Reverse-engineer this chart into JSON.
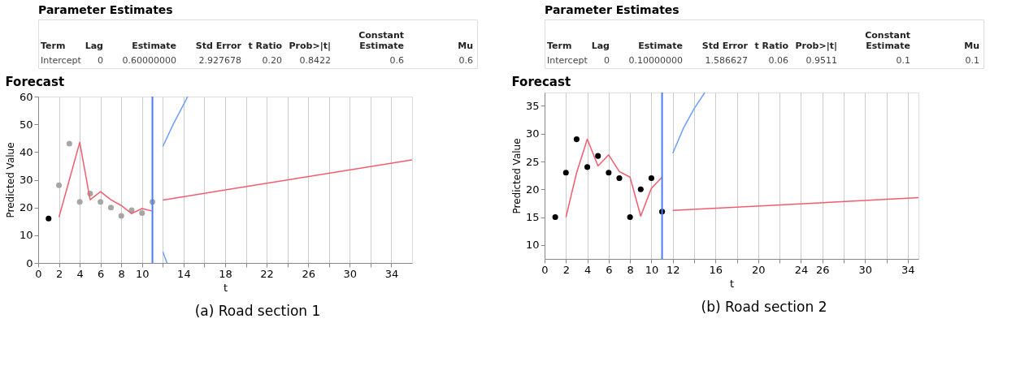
{
  "chart_data": [
    {
      "type": "other",
      "title": "Parameter Estimates",
      "annotations": [
        "Term",
        "Lag",
        "Estimate",
        "Std Error",
        "t Ratio",
        "Prob>|t|",
        "Constant Estimate",
        "Mu",
        "Intercept",
        "0",
        "0.60000000",
        "2.927678",
        "0.20",
        "0.8422",
        "0.6",
        "0.6"
      ]
    },
    {
      "type": "line",
      "title": "Forecast",
      "xlabel": "t",
      "ylabel": "Predicted Value",
      "xlim": [
        0,
        36
      ],
      "ylim": [
        0,
        60
      ],
      "xticks": [
        0,
        2,
        4,
        6,
        8,
        10,
        {
          "value": 12,
          "label": null
        },
        14,
        {
          "value": 16,
          "label": null
        },
        18,
        {
          "value": 20,
          "label": null
        },
        22,
        {
          "value": 24,
          "label": null
        },
        26,
        {
          "value": 28,
          "label": null
        },
        30,
        {
          "value": 32,
          "label": null
        },
        34
      ],
      "yticks": [
        0,
        10,
        20,
        30,
        40,
        50,
        60
      ],
      "grid": "x",
      "series": [
        {
          "type": "scatter",
          "x": [
            1,
            2,
            3,
            4,
            5,
            6,
            7,
            8,
            9,
            10,
            11
          ],
          "values": [
            16,
            28,
            43,
            22,
            25,
            22,
            20,
            17,
            19,
            18,
            22
          ],
          "colors": [
            "#000000",
            "#a6a6a6",
            "#a6a6a6",
            "#a6a6a6",
            "#a6a6a6",
            "#a6a6a6",
            "#a6a6a6",
            "#a6a6a6",
            "#a6a6a6",
            "#a6a6a6",
            "#a6a6a6"
          ]
        },
        {
          "type": "line",
          "color": "#f25c6e",
          "x": [
            2,
            3,
            4,
            5,
            6,
            7,
            8,
            9,
            10,
            11
          ],
          "values": [
            16.5,
            30,
            43.5,
            22.8,
            25.7,
            22.8,
            20.7,
            17.8,
            19.6,
            18.7
          ]
        },
        {
          "type": "line",
          "color": "#f25c6e",
          "x": [
            12,
            36
          ],
          "values": [
            22.7,
            37.2
          ]
        },
        {
          "type": "line",
          "color": "#6d9eff",
          "x": [
            12,
            13,
            14.4
          ],
          "values": [
            42,
            50,
            60
          ]
        },
        {
          "type": "line",
          "color": "#6d9eff",
          "x": [
            12,
            12.4
          ],
          "values": [
            4,
            0
          ]
        }
      ],
      "ref_lines": [
        {
          "axis": "x",
          "value": 11,
          "color": "#4a7cf7"
        }
      ],
      "annotations": [
        "(a) Road section 1"
      ]
    },
    {
      "type": "other",
      "title": "Parameter Estimates",
      "annotations": [
        "Term",
        "Lag",
        "Estimate",
        "Std Error",
        "t Ratio",
        "Prob>|t|",
        "Constant Estimate",
        "Mu",
        "Intercept",
        "0",
        "0.10000000",
        "1.586627",
        "0.06",
        "0.9511",
        "0.1",
        "0.1"
      ]
    },
    {
      "type": "line",
      "title": "Forecast",
      "xlabel": "t",
      "ylabel": "Predicted Value",
      "xlim": [
        0,
        35
      ],
      "ylim": [
        7.5,
        37.4
      ],
      "xticks": [
        0,
        2,
        4,
        6,
        8,
        10,
        12,
        {
          "value": 14,
          "label": null
        },
        16,
        {
          "value": 18,
          "label": null
        },
        20,
        {
          "value": 22,
          "label": null
        },
        24,
        26,
        {
          "value": 28,
          "label": null
        },
        30,
        {
          "value": 32,
          "label": null
        },
        34
      ],
      "yticks": [
        10,
        15,
        20,
        25,
        30,
        35
      ],
      "grid": "x",
      "series": [
        {
          "type": "scatter",
          "x": [
            1,
            2,
            3,
            4,
            5,
            6,
            7,
            8,
            9,
            10,
            11
          ],
          "values": [
            15,
            23,
            29,
            24,
            26,
            23,
            22,
            15,
            20,
            22,
            16
          ],
          "color": "#000000"
        },
        {
          "type": "line",
          "color": "#f25c6e",
          "x": [
            2,
            3,
            4,
            5,
            6,
            7,
            8,
            9,
            10,
            11
          ],
          "values": [
            15,
            23,
            29,
            24.2,
            26.2,
            23.2,
            22.2,
            15.2,
            20.2,
            22.2
          ]
        },
        {
          "type": "line",
          "color": "#f25c6e",
          "x": [
            12,
            35
          ],
          "values": [
            16.2,
            18.5
          ]
        },
        {
          "type": "line",
          "color": "#6d9eff",
          "x": [
            12,
            13,
            14,
            15
          ],
          "values": [
            26.5,
            31,
            34.5,
            37.4
          ]
        }
      ],
      "ref_lines": [
        {
          "axis": "x",
          "value": 11,
          "color": "#4a7cf7"
        }
      ],
      "annotations": [
        "(b) Road section 2"
      ]
    }
  ]
}
